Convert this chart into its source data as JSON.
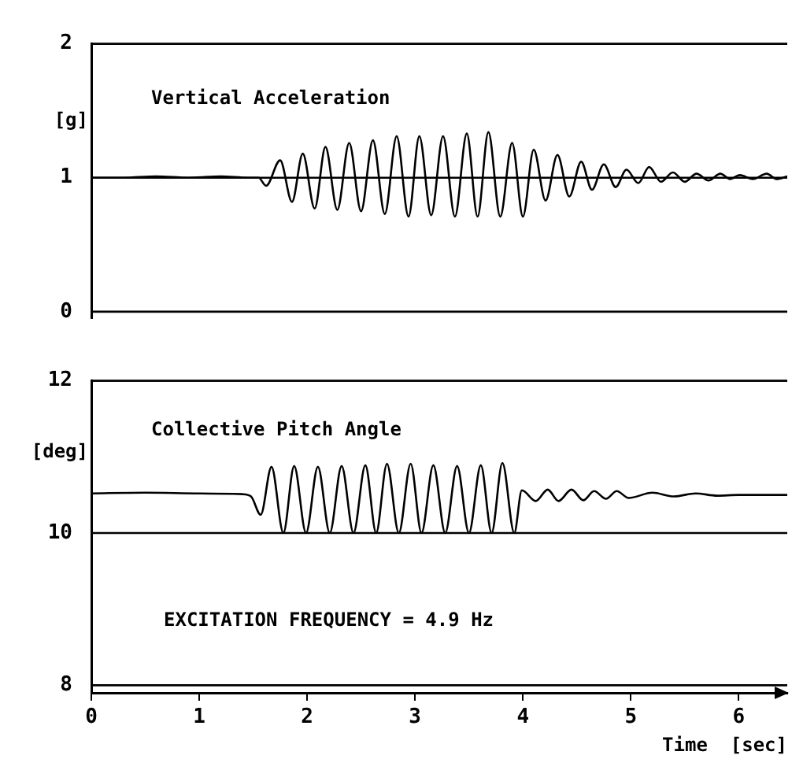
{
  "chart_data": [
    {
      "type": "line",
      "title": "Vertical Acceleration",
      "ylabel": "[g]",
      "xlim": [
        0,
        6.45
      ],
      "xticks": [
        0,
        1,
        2,
        3,
        4,
        5,
        6
      ],
      "ylim": [
        -0.05,
        2
      ],
      "yticks": [
        0,
        1,
        2
      ],
      "tick_labels": "y",
      "grid": false,
      "legend": false,
      "marker": "none",
      "line_style": "solid",
      "ref_lines": [
        {
          "axis": "y",
          "value": 1,
          "color": "#000000"
        },
        {
          "axis": "y",
          "value": 0,
          "color": "#000000"
        }
      ],
      "series": [
        {
          "color": "#000000",
          "x": [
            0,
            0.3,
            0.6,
            0.9,
            1.2,
            1.45,
            1.55,
            1.62,
            1.75,
            1.86,
            1.96,
            2.07,
            2.17,
            2.28,
            2.39,
            2.5,
            2.61,
            2.72,
            2.83,
            2.94,
            3.04,
            3.15,
            3.26,
            3.37,
            3.48,
            3.58,
            3.68,
            3.79,
            3.9,
            4.0,
            4.1,
            4.21,
            4.32,
            4.43,
            4.54,
            4.64,
            4.75,
            4.86,
            4.96,
            5.07,
            5.17,
            5.28,
            5.39,
            5.5,
            5.61,
            5.72,
            5.83,
            5.92,
            6.01,
            6.13,
            6.26,
            6.35,
            6.45
          ],
          "values": [
            1.0,
            1.0,
            1.01,
            1.0,
            1.01,
            1.0,
            1.0,
            0.94,
            1.13,
            0.82,
            1.18,
            0.77,
            1.23,
            0.76,
            1.26,
            0.75,
            1.28,
            0.73,
            1.31,
            0.71,
            1.31,
            0.72,
            1.31,
            0.71,
            1.33,
            0.71,
            1.34,
            0.71,
            1.26,
            0.71,
            1.21,
            0.83,
            1.17,
            0.86,
            1.12,
            0.91,
            1.1,
            0.93,
            1.06,
            0.96,
            1.08,
            0.97,
            1.04,
            0.97,
            1.03,
            0.98,
            1.03,
            0.99,
            1.02,
            0.99,
            1.03,
            0.99,
            1.01
          ]
        }
      ]
    },
    {
      "type": "line",
      "title": "Collective Pitch Angle",
      "ylabel": "[deg]",
      "xlabel": "Time  [sec]",
      "xlim": [
        0,
        6.45
      ],
      "xticks": [
        0,
        1,
        2,
        3,
        4,
        5,
        6
      ],
      "ylim": [
        7.9,
        12
      ],
      "yticks": [
        8,
        10,
        12
      ],
      "grid": false,
      "legend": false,
      "marker": "none",
      "line_style": "solid",
      "annotations": [
        "EXCITATION FREQUENCY = 4.9 Hz"
      ],
      "ref_lines": [
        {
          "axis": "y",
          "value": 10,
          "color": "#000000"
        },
        {
          "axis": "y",
          "value": 8,
          "color": "#000000"
        }
      ],
      "series": [
        {
          "color": "#000000",
          "x": [
            0,
            0.5,
            1.0,
            1.4,
            1.48,
            1.57,
            1.67,
            1.78,
            1.88,
            1.99,
            2.1,
            2.21,
            2.32,
            2.43,
            2.54,
            2.64,
            2.74,
            2.85,
            2.96,
            3.06,
            3.17,
            3.28,
            3.39,
            3.5,
            3.61,
            3.71,
            3.81,
            3.92,
            3.99,
            4.12,
            4.23,
            4.33,
            4.45,
            4.56,
            4.66,
            4.77,
            4.87,
            4.98,
            5.2,
            5.4,
            5.6,
            5.8,
            6.0,
            6.45
          ],
          "values": [
            10.52,
            10.53,
            10.52,
            10.51,
            10.48,
            10.24,
            10.87,
            10.0,
            10.88,
            10.0,
            10.87,
            10.0,
            10.88,
            10.0,
            10.89,
            10.0,
            10.91,
            10.0,
            10.91,
            10.0,
            10.89,
            10.0,
            10.88,
            10.0,
            10.89,
            10.0,
            10.92,
            10.0,
            10.56,
            10.42,
            10.57,
            10.42,
            10.57,
            10.43,
            10.55,
            10.45,
            10.55,
            10.46,
            10.53,
            10.48,
            10.52,
            10.49,
            10.5,
            10.5
          ]
        }
      ]
    }
  ]
}
